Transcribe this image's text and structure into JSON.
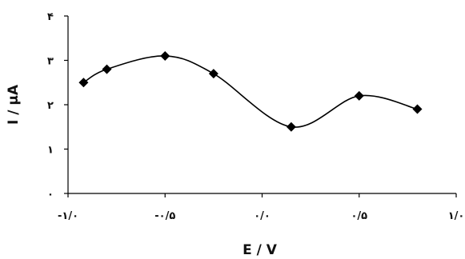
{
  "chart_data": {
    "type": "line",
    "smooth": true,
    "xlabel": "E / V",
    "ylabel": "I / µA",
    "xlim": [
      -1.0,
      1.0
    ],
    "ylim": [
      0,
      4
    ],
    "x_ticks": [
      -1.0,
      -0.5,
      0.0,
      0.5,
      1.0
    ],
    "x_tick_labels": [
      "-۱/۰",
      "-۰/۵",
      "۰/۰",
      "۰/۵",
      "۱/۰"
    ],
    "y_ticks": [
      0,
      1,
      2,
      3,
      4
    ],
    "y_tick_labels": [
      "۰",
      "۱",
      "۲",
      "۳",
      "۴"
    ],
    "grid": false,
    "legend": "none",
    "marker": "diamond",
    "line_color": "#000000",
    "series": [
      {
        "x": [
          -0.92,
          -0.8,
          -0.5,
          -0.25,
          0.15,
          0.5,
          0.8
        ],
        "y": [
          2.5,
          2.8,
          3.1,
          2.7,
          1.5,
          2.2,
          1.9
        ]
      }
    ]
  }
}
